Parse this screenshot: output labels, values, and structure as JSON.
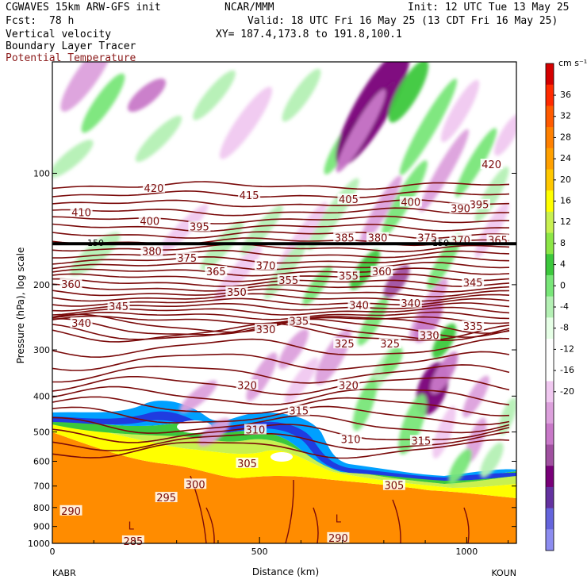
{
  "header": {
    "model": "CGWAVES 15km ARW-GFS init",
    "fcst_label": "Fcst:",
    "fcst_value": "78 h",
    "field1": "Vertical velocity",
    "field2": "Boundary Layer Tracer",
    "field3": "Potential Temperature",
    "center": "NCAR/MMM",
    "init": "Init: 12 UTC Tue 13 May 25",
    "valid": "Valid: 18 UTC Fri 16 May 25 (13 CDT Fri 16 May 25)",
    "xy": "XY= 187.4,173.8 to 191.8,100.1",
    "field3_color": "#8b1a1a"
  },
  "chart_data": {
    "type": "heatmap",
    "xlabel": "Distance (km)",
    "ylabel": "Pressure (hPa), log scale",
    "xlim": [
      0,
      1120
    ],
    "ylim": [
      1000,
      50
    ],
    "x_ticks": [
      0,
      500,
      1000
    ],
    "y_ticks": [
      100,
      200,
      300,
      400,
      500,
      600,
      700,
      800,
      900,
      1000
    ],
    "start_label": "KABR",
    "end_label": "KOUN",
    "colorbar": {
      "unit": "cm s⁻¹",
      "ticks": [
        "36",
        "32",
        "28",
        "24",
        "20",
        "16",
        "12",
        "8",
        "4",
        "0",
        "-4",
        "-8",
        "-12",
        "-16",
        "-20"
      ],
      "colors": [
        "#d40000",
        "#ff2a00",
        "#ff5a00",
        "#ff8000",
        "#ffa000",
        "#ffc800",
        "#ffff00",
        "#c8f050",
        "#8ce646",
        "#3cc83c",
        "#78e678",
        "#b4f0b4",
        "#e6ffe6",
        "#ffffff",
        "#ffffff",
        "#f0c8f0",
        "#dca0dc",
        "#c878c8",
        "#a050a0",
        "#780078",
        "#6432a0",
        "#6464dc",
        "#8c8cf0"
      ]
    },
    "tropopause_pressure": 155,
    "tropopause_label": "150",
    "isentropes": [
      {
        "theta": "420",
        "label_x": 245,
        "label_p": 110
      },
      {
        "theta": "420",
        "label_x": 1060,
        "label_p": 95
      },
      {
        "theta": "415",
        "label_x": 475,
        "label_p": 115
      },
      {
        "theta": "410",
        "label_x": 70,
        "label_p": 128
      },
      {
        "theta": "405",
        "label_x": 715,
        "label_p": 118
      },
      {
        "theta": "400",
        "label_x": 235,
        "label_p": 135
      },
      {
        "theta": "400",
        "label_x": 865,
        "label_p": 120
      },
      {
        "theta": "395",
        "label_x": 355,
        "label_p": 140
      },
      {
        "theta": "395",
        "label_x": 1030,
        "label_p": 122
      },
      {
        "theta": "390",
        "label_x": 985,
        "label_p": 125
      },
      {
        "theta": "385",
        "label_x": 705,
        "label_p": 150
      },
      {
        "theta": "380",
        "label_x": 240,
        "label_p": 163
      },
      {
        "theta": "380",
        "label_x": 785,
        "label_p": 150
      },
      {
        "theta": "375",
        "label_x": 325,
        "label_p": 170
      },
      {
        "theta": "375",
        "label_x": 905,
        "label_p": 150
      },
      {
        "theta": "370",
        "label_x": 515,
        "label_p": 178
      },
      {
        "theta": "370",
        "label_x": 985,
        "label_p": 152
      },
      {
        "theta": "365",
        "label_x": 395,
        "label_p": 185
      },
      {
        "theta": "365",
        "label_x": 1075,
        "label_p": 152
      },
      {
        "theta": "360",
        "label_x": 45,
        "label_p": 200
      },
      {
        "theta": "360",
        "label_x": 795,
        "label_p": 185
      },
      {
        "theta": "355",
        "label_x": 570,
        "label_p": 195
      },
      {
        "theta": "355",
        "label_x": 715,
        "label_p": 190
      },
      {
        "theta": "350",
        "label_x": 445,
        "label_p": 210
      },
      {
        "theta": "345",
        "label_x": 160,
        "label_p": 230
      },
      {
        "theta": "345",
        "label_x": 1015,
        "label_p": 198
      },
      {
        "theta": "340",
        "label_x": 70,
        "label_p": 255
      },
      {
        "theta": "340",
        "label_x": 740,
        "label_p": 228
      },
      {
        "theta": "340",
        "label_x": 865,
        "label_p": 225
      },
      {
        "theta": "335",
        "label_x": 595,
        "label_p": 252
      },
      {
        "theta": "335",
        "label_x": 1015,
        "label_p": 260
      },
      {
        "theta": "330",
        "label_x": 515,
        "label_p": 265
      },
      {
        "theta": "330",
        "label_x": 910,
        "label_p": 275
      },
      {
        "theta": "325",
        "label_x": 705,
        "label_p": 290
      },
      {
        "theta": "325",
        "label_x": 815,
        "label_p": 290
      },
      {
        "theta": "320",
        "label_x": 470,
        "label_p": 375
      },
      {
        "theta": "320",
        "label_x": 715,
        "label_p": 375
      },
      {
        "theta": "315",
        "label_x": 595,
        "label_p": 440
      },
      {
        "theta": "315",
        "label_x": 890,
        "label_p": 530
      },
      {
        "theta": "310",
        "label_x": 490,
        "label_p": 495
      },
      {
        "theta": "310",
        "label_x": 720,
        "label_p": 525
      },
      {
        "theta": "305",
        "label_x": 470,
        "label_p": 610
      },
      {
        "theta": "305",
        "label_x": 825,
        "label_p": 700
      },
      {
        "theta": "300",
        "label_x": 345,
        "label_p": 695
      },
      {
        "theta": "295",
        "label_x": 275,
        "label_p": 755
      },
      {
        "theta": "290",
        "label_x": 45,
        "label_p": 820
      },
      {
        "theta": "285",
        "label_x": 195,
        "label_p": 990
      },
      {
        "theta": "290",
        "label_x": 690,
        "label_p": 970
      }
    ],
    "lows": [
      {
        "label": "L",
        "x": 190,
        "p": 900
      },
      {
        "label": "L",
        "x": 690,
        "p": 860
      }
    ]
  }
}
